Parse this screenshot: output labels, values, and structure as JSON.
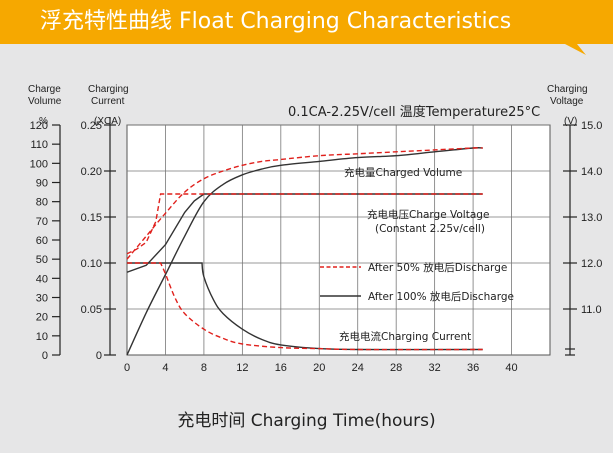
{
  "banner": {
    "title": "浮充特性曲线 Float Charging Characteristics",
    "bg_color": "#f6a800"
  },
  "axis_headers": {
    "charge_volume": [
      "Charge",
      "Volume"
    ],
    "charge_volume_unit": "%",
    "charging_current": [
      "Charging",
      "Current"
    ],
    "charging_current_unit": "(XCA)",
    "charging_voltage": [
      "Charging",
      "Voltage"
    ],
    "charging_voltage_unit": "(V)"
  },
  "condition": "0.1CA-2.25V/cell  温度Temperature25°C",
  "x_title": "充电时间 Charging Time(hours)",
  "annotations": {
    "charged_volume": "充电量Charged Volume",
    "charge_voltage": "充电电压Charge Voltage",
    "charge_voltage_sub": "(Constant 2.25v/cell)",
    "charging_current": "充电电流Charging Current"
  },
  "legend": {
    "after50": "After 50% 放电后Discharge",
    "after100": "After 100% 放电后Discharge"
  },
  "chart_data": {
    "type": "line",
    "x_ticks": [
      "0",
      "4",
      "8",
      "12",
      "16",
      "20",
      "24",
      "28",
      "32",
      "36",
      "40"
    ],
    "xlim": [
      0,
      44
    ],
    "y_left_volume_ticks": [
      "0",
      "10",
      "20",
      "30",
      "40",
      "50",
      "60",
      "70",
      "80",
      "90",
      "100",
      "110",
      "120"
    ],
    "y_left_volume_lim": [
      0,
      120
    ],
    "y_left_current_ticks": [
      "0",
      "0.05",
      "0.10",
      "0.15",
      "0.20",
      "0.25"
    ],
    "y_left_current_lim": [
      0,
      0.25
    ],
    "y_right_voltage_ticks": [
      "11.0",
      "12.0",
      "13.0",
      "14.0",
      "15.0"
    ],
    "y_right_voltage_lim": [
      10.0,
      15.0
    ],
    "grid": true,
    "colors": {
      "after50": "#e0201c",
      "after100": "#333333"
    },
    "series": [
      {
        "name": "充电量Charged Volume",
        "group": "After 100% 放电后Discharge",
        "axis": "volume",
        "x": [
          0,
          2,
          4,
          6,
          8,
          10,
          12,
          14,
          16,
          20,
          24,
          28,
          32,
          36,
          37
        ],
        "y": [
          0,
          22,
          42,
          62,
          80,
          89,
          94,
          97,
          99,
          101,
          103,
          104,
          106,
          108,
          108
        ]
      },
      {
        "name": "充电量Charged Volume",
        "group": "After 50% 放电后Discharge",
        "axis": "volume",
        "x": [
          0,
          2,
          4,
          6,
          8,
          10,
          12,
          14,
          16,
          20,
          24,
          28,
          32,
          36,
          37
        ],
        "y": [
          50,
          62,
          74,
          85,
          92,
          96,
          99,
          101,
          102,
          104,
          105,
          106,
          107,
          108,
          108
        ]
      },
      {
        "name": "充电电压Charge Voltage",
        "group": "After 100% 放电后Discharge",
        "axis": "voltage",
        "x": [
          0,
          2,
          4,
          6,
          7,
          8,
          10,
          14,
          20,
          28,
          37
        ],
        "y": [
          11.8,
          11.95,
          12.4,
          13.1,
          13.35,
          13.5,
          13.5,
          13.5,
          13.5,
          13.5,
          13.5
        ]
      },
      {
        "name": "充电电压Charge Voltage",
        "group": "After 50% 放电后Discharge",
        "axis": "voltage",
        "x": [
          0,
          1,
          2,
          3,
          3.5,
          37
        ],
        "y": [
          12.2,
          12.3,
          12.45,
          12.9,
          13.5,
          13.5
        ]
      },
      {
        "name": "充电电流Charging Current",
        "group": "After 100% 放电后Discharge",
        "axis": "current",
        "x": [
          0,
          7.8,
          8,
          9,
          10,
          12,
          14,
          16,
          20,
          24,
          37
        ],
        "y": [
          0.1,
          0.1,
          0.085,
          0.06,
          0.045,
          0.028,
          0.017,
          0.011,
          0.007,
          0.006,
          0.006
        ]
      },
      {
        "name": "充电电流Charging Current",
        "group": "After 50% 放电后Discharge",
        "axis": "current",
        "x": [
          0,
          3.5,
          4,
          5,
          6,
          8,
          10,
          12,
          16,
          20,
          24,
          37
        ],
        "y": [
          0.1,
          0.1,
          0.088,
          0.062,
          0.045,
          0.028,
          0.018,
          0.012,
          0.008,
          0.007,
          0.006,
          0.006
        ]
      }
    ]
  }
}
